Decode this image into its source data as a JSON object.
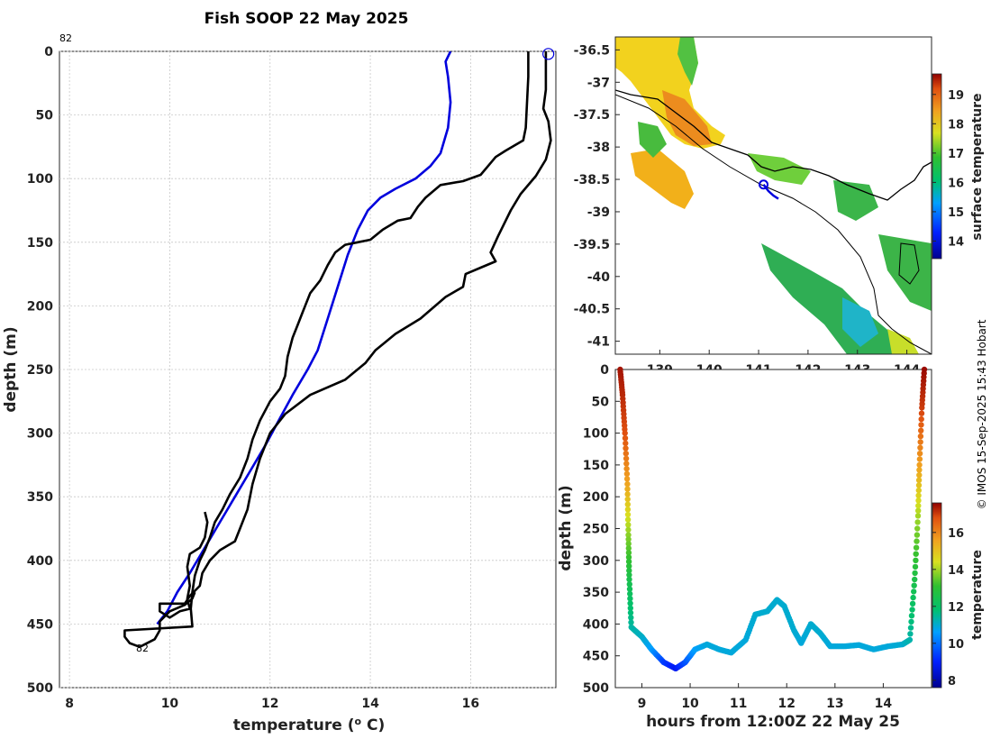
{
  "chart_data": [
    {
      "type": "line",
      "title": "Fish SOOP 22 May 2025",
      "xlabel": "temperature (",
      "xlabel_sup": "o",
      "xlabel_end": " C)",
      "ylabel": "depth (m)",
      "xlim": [
        7.8,
        17.7
      ],
      "ylim": [
        500,
        0
      ],
      "xticks": [
        8,
        10,
        12,
        14,
        16
      ],
      "yticks": [
        0,
        50,
        100,
        150,
        200,
        250,
        300,
        350,
        400,
        450,
        500
      ],
      "grid": true,
      "profile_id_top": "82",
      "profile_id_bottom": "82",
      "series": [
        {
          "name": "blue",
          "color": "#0000dd",
          "points": [
            [
              15.6,
              0
            ],
            [
              15.5,
              8
            ],
            [
              15.55,
              20
            ],
            [
              15.6,
              40
            ],
            [
              15.55,
              60
            ],
            [
              15.4,
              80
            ],
            [
              15.2,
              90
            ],
            [
              14.9,
              100
            ],
            [
              14.5,
              108
            ],
            [
              14.2,
              115
            ],
            [
              13.95,
              125
            ],
            [
              13.75,
              140
            ],
            [
              13.55,
              160
            ],
            [
              13.35,
              185
            ],
            [
              13.15,
              210
            ],
            [
              12.95,
              235
            ],
            [
              12.75,
              250
            ],
            [
              12.45,
              270
            ],
            [
              12.2,
              288
            ],
            [
              11.9,
              310
            ],
            [
              11.6,
              330
            ],
            [
              11.3,
              350
            ],
            [
              11.0,
              370
            ],
            [
              10.7,
              390
            ],
            [
              10.4,
              410
            ],
            [
              10.15,
              425
            ],
            [
              9.95,
              440
            ],
            [
              9.75,
              450
            ]
          ]
        },
        {
          "name": "black-1",
          "color": "#000000",
          "points": [
            [
              17.15,
              0
            ],
            [
              17.15,
              20
            ],
            [
              17.1,
              60
            ],
            [
              17.05,
              70
            ],
            [
              16.7,
              78
            ],
            [
              16.5,
              83
            ],
            [
              16.35,
              90
            ],
            [
              16.2,
              97
            ],
            [
              15.85,
              102
            ],
            [
              15.4,
              105
            ],
            [
              15.1,
              115
            ],
            [
              14.95,
              122
            ],
            [
              14.8,
              131
            ],
            [
              14.55,
              133
            ],
            [
              14.25,
              140
            ],
            [
              14.0,
              148
            ],
            [
              13.75,
              150
            ],
            [
              13.5,
              152
            ],
            [
              13.3,
              158
            ],
            [
              13.15,
              168
            ],
            [
              13.0,
              180
            ],
            [
              12.8,
              190
            ],
            [
              12.65,
              205
            ],
            [
              12.55,
              215
            ],
            [
              12.45,
              225
            ],
            [
              12.35,
              240
            ],
            [
              12.3,
              255
            ],
            [
              12.2,
              265
            ],
            [
              12.0,
              275
            ],
            [
              11.8,
              290
            ],
            [
              11.65,
              305
            ],
            [
              11.55,
              320
            ],
            [
              11.4,
              335
            ],
            [
              11.2,
              348
            ],
            [
              11.05,
              360
            ],
            [
              10.9,
              370
            ],
            [
              10.8,
              382
            ],
            [
              10.7,
              392
            ],
            [
              10.6,
              400
            ],
            [
              10.5,
              412
            ],
            [
              10.45,
              425
            ],
            [
              10.42,
              438
            ],
            [
              10.45,
              452
            ],
            [
              9.1,
              455
            ],
            [
              9.1,
              460
            ],
            [
              9.2,
              465
            ],
            [
              9.4,
              468
            ],
            [
              9.7,
              462
            ],
            [
              9.8,
              455
            ],
            [
              9.8,
              448
            ],
            [
              10.0,
              440
            ],
            [
              10.3,
              435
            ],
            [
              10.45,
              430
            ],
            [
              10.5,
              425
            ]
          ]
        },
        {
          "name": "black-2",
          "color": "#000000",
          "points": [
            [
              17.5,
              0
            ],
            [
              17.5,
              30
            ],
            [
              17.45,
              45
            ],
            [
              17.55,
              55
            ],
            [
              17.6,
              70
            ],
            [
              17.5,
              85
            ],
            [
              17.3,
              98
            ],
            [
              17.0,
              112
            ],
            [
              16.8,
              125
            ],
            [
              16.55,
              145
            ],
            [
              16.4,
              158
            ],
            [
              16.5,
              165
            ],
            [
              16.2,
              170
            ],
            [
              15.9,
              175
            ],
            [
              15.85,
              185
            ],
            [
              15.5,
              193
            ],
            [
              15.0,
              210
            ],
            [
              14.5,
              222
            ],
            [
              14.1,
              235
            ],
            [
              13.9,
              245
            ],
            [
              13.5,
              258
            ],
            [
              12.8,
              270
            ],
            [
              12.3,
              285
            ],
            [
              12.0,
              300
            ],
            [
              11.8,
              320
            ],
            [
              11.65,
              340
            ],
            [
              11.55,
              360
            ],
            [
              11.4,
              375
            ],
            [
              11.3,
              385
            ],
            [
              11.0,
              392
            ],
            [
              10.8,
              400
            ],
            [
              10.65,
              410
            ],
            [
              10.6,
              420
            ],
            [
              10.4,
              428
            ],
            [
              10.3,
              434
            ],
            [
              9.8,
              434
            ],
            [
              9.8,
              440
            ],
            [
              10.0,
              445
            ],
            [
              10.2,
              440
            ],
            [
              10.4,
              438
            ],
            [
              10.35,
              430
            ],
            [
              10.4,
              420
            ],
            [
              10.35,
              405
            ],
            [
              10.4,
              395
            ],
            [
              10.6,
              390
            ],
            [
              10.7,
              382
            ],
            [
              10.75,
              370
            ],
            [
              10.7,
              362
            ]
          ]
        }
      ],
      "start_marker": {
        "x": 17.55,
        "y": 2,
        "color": "#0000dd"
      }
    },
    {
      "type": "heatmap",
      "title": "",
      "xlim": [
        138.1,
        144.5
      ],
      "ylim": [
        -41.2,
        -36.3
      ],
      "xticks": [
        139,
        140,
        141,
        142,
        143,
        144
      ],
      "yticks": [
        -36.5,
        -37,
        -37.5,
        -38,
        -38.5,
        -39,
        -39.5,
        -40,
        -40.5,
        -41
      ],
      "ytick_labels": [
        "-36.5",
        "-37",
        "-37.5",
        "-38",
        "-38.5",
        "-39",
        "-39.5",
        "-40",
        "-40.5",
        "-41"
      ],
      "colorbar_label": "surface temperature",
      "colorbar_range": [
        13.4,
        19.7
      ],
      "colorbar_ticks": [
        14,
        15,
        16,
        17,
        18,
        19
      ],
      "ship_track": [
        [
          141.1,
          -38.58
        ],
        [
          141.2,
          -38.68
        ],
        [
          141.3,
          -38.75
        ],
        [
          141.4,
          -38.8
        ]
      ],
      "ship_marker": {
        "lon": 141.1,
        "lat": -38.58
      }
    },
    {
      "type": "scatter",
      "xlabel": "hours from 12:00Z 22 May 25",
      "ylabel": "depth (m)",
      "xlim": [
        8.45,
        15.0
      ],
      "ylim": [
        500,
        0
      ],
      "xticks": [
        9,
        10,
        11,
        12,
        13,
        14
      ],
      "yticks": [
        0,
        50,
        100,
        150,
        200,
        250,
        300,
        350,
        400,
        450,
        500
      ],
      "colorbar_label": "temperature",
      "colorbar_range": [
        7.6,
        17.6
      ],
      "colorbar_ticks": [
        8,
        10,
        12,
        14,
        16
      ],
      "trace": [
        [
          8.55,
          0,
          17.4
        ],
        [
          8.6,
          40,
          17.2
        ],
        [
          8.65,
          100,
          16.8
        ],
        [
          8.7,
          180,
          15.5
        ],
        [
          8.72,
          260,
          13.8
        ],
        [
          8.74,
          330,
          12.5
        ],
        [
          8.78,
          405,
          11.4
        ],
        [
          9.0,
          420,
          11.1
        ],
        [
          9.2,
          440,
          10.6
        ],
        [
          9.45,
          460,
          9.4
        ],
        [
          9.7,
          470,
          8.8
        ],
        [
          9.9,
          460,
          9.6
        ],
        [
          10.1,
          440,
          10.6
        ],
        [
          10.35,
          432,
          10.9
        ],
        [
          10.6,
          440,
          10.9
        ],
        [
          10.85,
          445,
          10.9
        ],
        [
          11.15,
          425,
          10.9
        ],
        [
          11.35,
          385,
          11.0
        ],
        [
          11.6,
          380,
          11.0
        ],
        [
          11.8,
          362,
          11.0
        ],
        [
          11.95,
          372,
          11.0
        ],
        [
          12.15,
          410,
          11.0
        ],
        [
          12.3,
          430,
          10.9
        ],
        [
          12.5,
          400,
          11.0
        ],
        [
          12.7,
          415,
          11.0
        ],
        [
          12.9,
          435,
          10.9
        ],
        [
          13.2,
          435,
          10.9
        ],
        [
          13.5,
          433,
          10.9
        ],
        [
          13.8,
          440,
          10.9
        ],
        [
          14.1,
          435,
          10.9
        ],
        [
          14.4,
          432,
          11.0
        ],
        [
          14.55,
          425,
          11.3
        ],
        [
          14.65,
          330,
          12.6
        ],
        [
          14.72,
          230,
          14.0
        ],
        [
          14.75,
          150,
          15.6
        ],
        [
          14.8,
          60,
          17.0
        ],
        [
          14.85,
          0,
          17.5
        ]
      ]
    }
  ],
  "credit": "© IMOS 15-Sep-2025 15:43 Hobart"
}
